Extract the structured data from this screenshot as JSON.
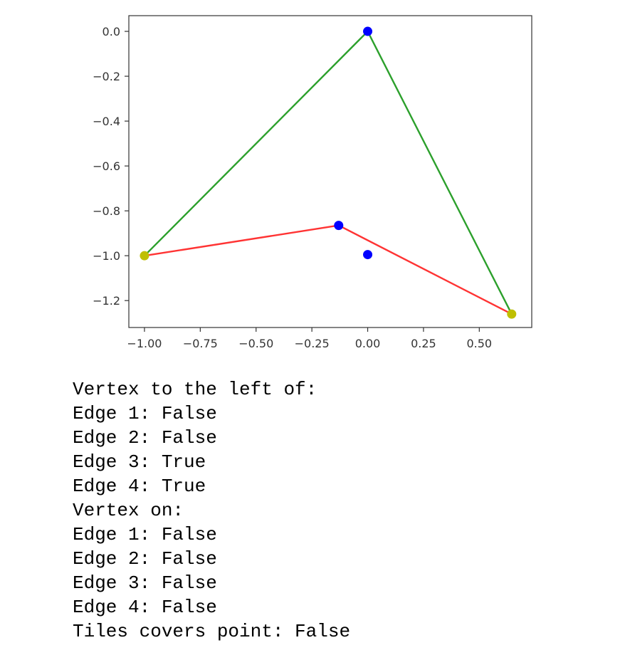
{
  "chart_data": {
    "type": "line",
    "xlim": [
      -1.07,
      0.735
    ],
    "ylim": [
      -1.32,
      0.07
    ],
    "xticks": [
      -1.0,
      -0.75,
      -0.5,
      -0.25,
      0.0,
      0.25,
      0.5
    ],
    "xtick_labels": [
      "−1.00",
      "−0.75",
      "−0.50",
      "−0.25",
      "0.00",
      "0.25",
      "0.50"
    ],
    "yticks": [
      0.0,
      -0.2,
      -0.4,
      -0.6,
      -0.8,
      -1.0,
      -1.2
    ],
    "ytick_labels": [
      "0.0",
      "−0.2",
      "−0.4",
      "−0.6",
      "−0.8",
      "−1.0",
      "−1.2"
    ],
    "grid": false,
    "series": [
      {
        "color": "#2ca02c",
        "points": [
          [
            -1.0,
            -1.0
          ],
          [
            0.0,
            0.0
          ],
          [
            0.645,
            -1.26
          ]
        ]
      },
      {
        "color": "#ff3333",
        "points": [
          [
            -1.0,
            -1.0
          ],
          [
            -0.13,
            -0.865
          ],
          [
            0.645,
            -1.26
          ]
        ]
      }
    ],
    "markers": [
      {
        "x": 0.0,
        "y": 0.0,
        "color": "#0000ff"
      },
      {
        "x": -0.13,
        "y": -0.865,
        "color": "#0000ff"
      },
      {
        "x": 0.0,
        "y": -0.995,
        "color": "#0000ff"
      },
      {
        "x": -1.0,
        "y": -1.0,
        "color": "#bfbf00"
      },
      {
        "x": 0.645,
        "y": -1.26,
        "color": "#bfbf00"
      }
    ]
  },
  "output": {
    "lines": [
      "Vertex to the left of:",
      "Edge 1: False",
      "Edge 2: False",
      "Edge 3: True",
      "Edge 4: True",
      "Vertex on:",
      "Edge 1: False",
      "Edge 2: False",
      "Edge 3: False",
      "Edge 4: False",
      "Tiles covers point: False"
    ]
  }
}
